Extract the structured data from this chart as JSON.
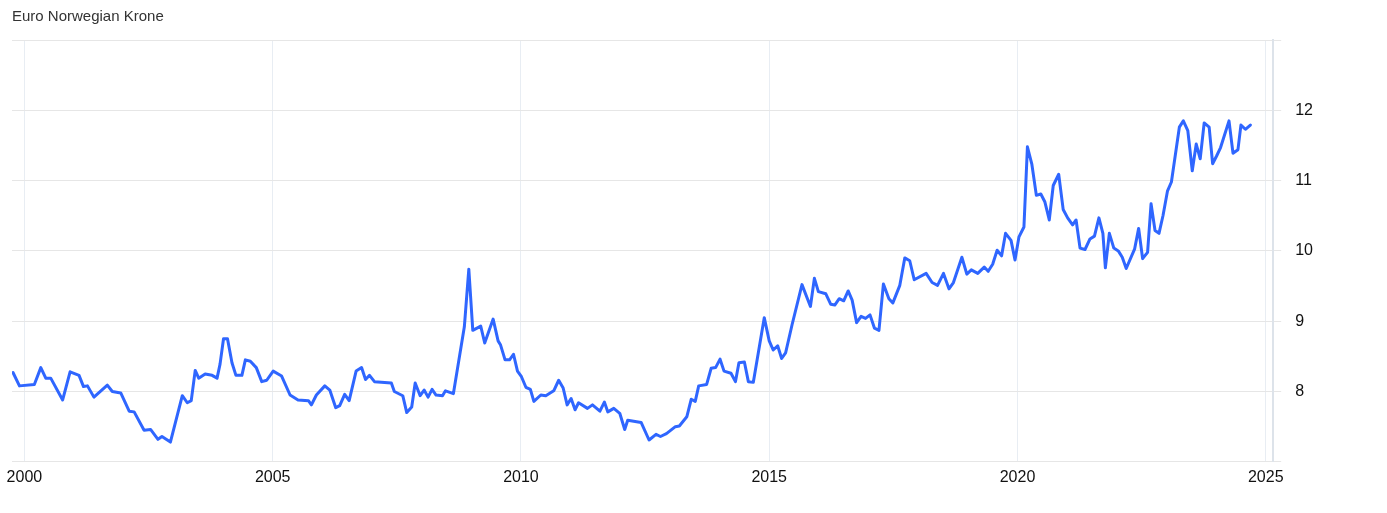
{
  "chart_data": {
    "type": "line",
    "title": "Euro Norwegian Krone",
    "xlim": [
      1999.75,
      2025.15
    ],
    "xticks": [
      2000,
      2005,
      2010,
      2015,
      2020,
      2025
    ],
    "ylim": [
      7,
      13
    ],
    "yticks": [
      {
        "value": 7,
        "label": null
      },
      8,
      9,
      10,
      11,
      12,
      {
        "value": 13,
        "label": null
      }
    ],
    "grid": true,
    "series": [
      {
        "color": "#2f66ff",
        "x": [
          1999.77,
          1999.9,
          2000.2,
          2000.33,
          2000.43,
          2000.53,
          2000.77,
          2000.92,
          2001.1,
          2001.19,
          2001.27,
          2001.4,
          2001.67,
          2001.77,
          2001.94,
          2002.11,
          2002.21,
          2002.41,
          2002.54,
          2002.69,
          2002.77,
          2002.94,
          2003.18,
          2003.28,
          2003.36,
          2003.44,
          2003.51,
          2003.64,
          2003.78,
          2003.88,
          2003.94,
          2004.01,
          2004.09,
          2004.18,
          2004.26,
          2004.38,
          2004.45,
          2004.55,
          2004.67,
          2004.78,
          2004.88,
          2005.01,
          2005.18,
          2005.35,
          2005.51,
          2005.72,
          2005.78,
          2005.88,
          2006.05,
          2006.15,
          2006.27,
          2006.35,
          2006.45,
          2006.54,
          2006.68,
          2006.79,
          2006.87,
          2006.95,
          2007.05,
          2007.39,
          2007.45,
          2007.62,
          2007.7,
          2007.8,
          2007.87,
          2007.97,
          2008.05,
          2008.13,
          2008.21,
          2008.29,
          2008.42,
          2008.48,
          2008.64,
          2008.86,
          2008.95,
          2009.03,
          2009.19,
          2009.27,
          2009.44,
          2009.54,
          2009.59,
          2009.68,
          2009.77,
          2009.85,
          2009.93,
          2010.01,
          2010.1,
          2010.19,
          2010.26,
          2010.4,
          2010.5,
          2010.66,
          2010.76,
          2010.85,
          2010.93,
          2011.01,
          2011.09,
          2011.16,
          2011.34,
          2011.44,
          2011.59,
          2011.68,
          2011.75,
          2011.87,
          2011.99,
          2012.09,
          2012.15,
          2012.42,
          2012.58,
          2012.72,
          2012.81,
          2012.93,
          2013.11,
          2013.19,
          2013.34,
          2013.43,
          2013.51,
          2013.58,
          2013.74,
          2013.83,
          2013.92,
          2014.01,
          2014.09,
          2014.23,
          2014.32,
          2014.39,
          2014.5,
          2014.58,
          2014.68,
          2014.9,
          2015.0,
          2015.08,
          2015.17,
          2015.25,
          2015.33,
          2015.46,
          2015.66,
          2015.83,
          2015.91,
          2015.99,
          2016.14,
          2016.24,
          2016.32,
          2016.41,
          2016.5,
          2016.59,
          2016.67,
          2016.76,
          2016.85,
          2016.94,
          2017.03,
          2017.12,
          2017.21,
          2017.3,
          2017.41,
          2017.49,
          2017.63,
          2017.73,
          2017.83,
          2017.92,
          2018.16,
          2018.28,
          2018.39,
          2018.51,
          2018.62,
          2018.71,
          2018.88,
          2018.98,
          2019.07,
          2019.2,
          2019.33,
          2019.41,
          2019.5,
          2019.59,
          2019.68,
          2019.76,
          2019.87,
          2019.95,
          2020.03,
          2020.13,
          2020.2,
          2020.29,
          2020.38,
          2020.47,
          2020.55,
          2020.64,
          2020.72,
          2020.83,
          2020.92,
          2021.01,
          2021.11,
          2021.18,
          2021.26,
          2021.36,
          2021.46,
          2021.55,
          2021.64,
          2021.72,
          2021.77,
          2021.85,
          2021.94,
          2022.03,
          2022.11,
          2022.19,
          2022.36,
          2022.44,
          2022.52,
          2022.62,
          2022.69,
          2022.77,
          2022.85,
          2022.93,
          2023.02,
          2023.1,
          2023.26,
          2023.34,
          2023.43,
          2023.52,
          2023.6,
          2023.68,
          2023.76,
          2023.86,
          2023.93,
          2024.01,
          2024.09,
          2024.26,
          2024.34,
          2024.44,
          2024.5,
          2024.59,
          2024.69
        ],
        "values": [
          8.27,
          8.08,
          8.1,
          8.34,
          8.19,
          8.19,
          7.88,
          8.28,
          8.23,
          8.07,
          8.08,
          7.92,
          8.09,
          8.0,
          7.98,
          7.72,
          7.71,
          7.45,
          7.46,
          7.32,
          7.36,
          7.28,
          7.94,
          7.84,
          7.87,
          8.3,
          8.19,
          8.25,
          8.23,
          8.19,
          8.39,
          8.75,
          8.75,
          8.41,
          8.23,
          8.23,
          8.45,
          8.43,
          8.34,
          8.14,
          8.16,
          8.29,
          8.22,
          7.95,
          7.88,
          7.87,
          7.81,
          7.95,
          8.08,
          8.02,
          7.77,
          7.8,
          7.96,
          7.87,
          8.29,
          8.34,
          8.17,
          8.23,
          8.14,
          8.12,
          8.0,
          7.94,
          7.7,
          7.78,
          8.12,
          7.94,
          8.02,
          7.92,
          8.03,
          7.95,
          7.94,
          8.01,
          7.97,
          8.92,
          9.74,
          8.87,
          8.93,
          8.69,
          9.03,
          8.72,
          8.66,
          8.45,
          8.45,
          8.53,
          8.29,
          8.21,
          8.06,
          8.03,
          7.86,
          7.95,
          7.94,
          8.01,
          8.16,
          8.05,
          7.81,
          7.9,
          7.74,
          7.84,
          7.76,
          7.81,
          7.72,
          7.85,
          7.71,
          7.76,
          7.69,
          7.46,
          7.59,
          7.56,
          7.31,
          7.39,
          7.36,
          7.4,
          7.5,
          7.51,
          7.64,
          7.89,
          7.86,
          8.08,
          8.1,
          8.33,
          8.34,
          8.46,
          8.29,
          8.26,
          8.14,
          8.41,
          8.42,
          8.14,
          8.13,
          9.05,
          8.72,
          8.59,
          8.65,
          8.47,
          8.55,
          8.95,
          9.52,
          9.21,
          9.61,
          9.42,
          9.39,
          9.24,
          9.23,
          9.32,
          9.29,
          9.43,
          9.3,
          8.98,
          9.07,
          9.04,
          9.09,
          8.9,
          8.87,
          9.53,
          9.32,
          9.26,
          9.51,
          9.9,
          9.86,
          9.59,
          9.68,
          9.55,
          9.51,
          9.68,
          9.46,
          9.55,
          9.91,
          9.67,
          9.73,
          9.68,
          9.77,
          9.71,
          9.81,
          10.01,
          9.93,
          10.25,
          10.15,
          9.87,
          10.2,
          10.34,
          11.48,
          11.23,
          10.79,
          10.81,
          10.7,
          10.44,
          10.93,
          11.09,
          10.59,
          10.47,
          10.37,
          10.44,
          10.04,
          10.02,
          10.17,
          10.21,
          10.47,
          10.25,
          9.76,
          10.25,
          10.04,
          10.0,
          9.91,
          9.75,
          10.03,
          10.32,
          9.89,
          9.98,
          10.67,
          10.29,
          10.25,
          10.5,
          10.85,
          10.98,
          11.76,
          11.85,
          11.71,
          11.14,
          11.52,
          11.31,
          11.82,
          11.76,
          11.24,
          11.35,
          11.47,
          11.85,
          11.39,
          11.44,
          11.79,
          11.73,
          11.79
        ]
      }
    ]
  }
}
